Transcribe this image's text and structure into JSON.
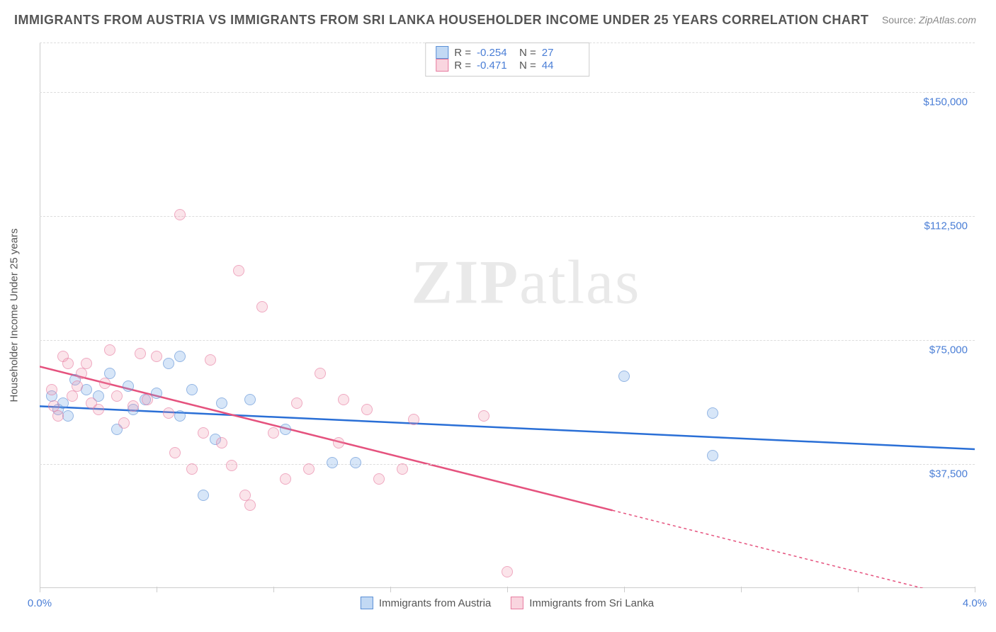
{
  "title": "IMMIGRANTS FROM AUSTRIA VS IMMIGRANTS FROM SRI LANKA HOUSEHOLDER INCOME UNDER 25 YEARS CORRELATION CHART",
  "source_label": "Source:",
  "source_link": "ZipAtlas.com",
  "ylabel": "Householder Income Under 25 years",
  "watermark_a": "ZIP",
  "watermark_b": "atlas",
  "chart": {
    "type": "scatter",
    "xlim": [
      0.0,
      4.0
    ],
    "ylim": [
      0,
      165000
    ],
    "x_tick_positions": [
      0.0,
      0.5,
      1.0,
      1.5,
      2.0,
      2.5,
      3.0,
      3.5,
      4.0
    ],
    "x_tick_labels_show": {
      "0.0": "0.0%",
      "4.0": "4.0%"
    },
    "y_grid_values": [
      37500,
      75000,
      112500,
      150000,
      165000
    ],
    "y_tick_labels": {
      "37500": "$37,500",
      "75000": "$75,000",
      "112500": "$112,500",
      "150000": "$150,000"
    },
    "background_color": "#ffffff",
    "grid_color": "#dddddd",
    "series": [
      {
        "key": "austria",
        "label": "Immigrants from Austria",
        "color_fill": "rgba(120,170,230,0.45)",
        "color_stroke": "#5a8fd6",
        "trend_color": "#2a6fd6",
        "stats": {
          "R": "-0.254",
          "N": "27"
        },
        "trend": {
          "x1": 0.0,
          "y1": 55000,
          "x2": 4.0,
          "y2": 42000,
          "dashed_from": null
        },
        "points": [
          [
            0.05,
            58000
          ],
          [
            0.08,
            54000
          ],
          [
            0.1,
            56000
          ],
          [
            0.12,
            52000
          ],
          [
            0.15,
            63000
          ],
          [
            0.2,
            60000
          ],
          [
            0.25,
            58000
          ],
          [
            0.3,
            65000
          ],
          [
            0.33,
            48000
          ],
          [
            0.38,
            61000
          ],
          [
            0.4,
            54000
          ],
          [
            0.45,
            57000
          ],
          [
            0.5,
            59000
          ],
          [
            0.55,
            68000
          ],
          [
            0.6,
            52000
          ],
          [
            0.65,
            60000
          ],
          [
            0.7,
            28000
          ],
          [
            0.75,
            45000
          ],
          [
            0.78,
            56000
          ],
          [
            0.9,
            57000
          ],
          [
            1.05,
            48000
          ],
          [
            1.25,
            38000
          ],
          [
            1.35,
            38000
          ],
          [
            2.5,
            64000
          ],
          [
            2.88,
            53000
          ],
          [
            2.88,
            40000
          ],
          [
            0.6,
            70000
          ]
        ]
      },
      {
        "key": "srilanka",
        "label": "Immigrants from Sri Lanka",
        "color_fill": "rgba(240,150,175,0.40)",
        "color_stroke": "#e77ca0",
        "trend_color": "#e5527e",
        "stats": {
          "R": "-0.471",
          "N": "44"
        },
        "trend": {
          "x1": 0.0,
          "y1": 67000,
          "x2": 4.0,
          "y2": -4000,
          "dashed_from": 2.45
        },
        "points": [
          [
            0.05,
            60000
          ],
          [
            0.06,
            55000
          ],
          [
            0.08,
            52000
          ],
          [
            0.1,
            70000
          ],
          [
            0.12,
            68000
          ],
          [
            0.14,
            58000
          ],
          [
            0.16,
            61000
          ],
          [
            0.18,
            65000
          ],
          [
            0.2,
            68000
          ],
          [
            0.22,
            56000
          ],
          [
            0.25,
            54000
          ],
          [
            0.28,
            62000
          ],
          [
            0.3,
            72000
          ],
          [
            0.33,
            58000
          ],
          [
            0.36,
            50000
          ],
          [
            0.4,
            55000
          ],
          [
            0.43,
            71000
          ],
          [
            0.46,
            57000
          ],
          [
            0.5,
            70000
          ],
          [
            0.55,
            53000
          ],
          [
            0.58,
            41000
          ],
          [
            0.6,
            113000
          ],
          [
            0.65,
            36000
          ],
          [
            0.7,
            47000
          ],
          [
            0.73,
            69000
          ],
          [
            0.78,
            44000
          ],
          [
            0.82,
            37000
          ],
          [
            0.85,
            96000
          ],
          [
            0.88,
            28000
          ],
          [
            0.9,
            25000
          ],
          [
            0.95,
            85000
          ],
          [
            1.0,
            47000
          ],
          [
            1.05,
            33000
          ],
          [
            1.1,
            56000
          ],
          [
            1.15,
            36000
          ],
          [
            1.2,
            65000
          ],
          [
            1.28,
            44000
          ],
          [
            1.4,
            54000
          ],
          [
            1.45,
            33000
          ],
          [
            1.55,
            36000
          ],
          [
            1.6,
            51000
          ],
          [
            1.9,
            52000
          ],
          [
            2.0,
            5000
          ],
          [
            1.3,
            57000
          ]
        ]
      }
    ]
  },
  "stats_labels": {
    "R": "R =",
    "N": "N ="
  }
}
